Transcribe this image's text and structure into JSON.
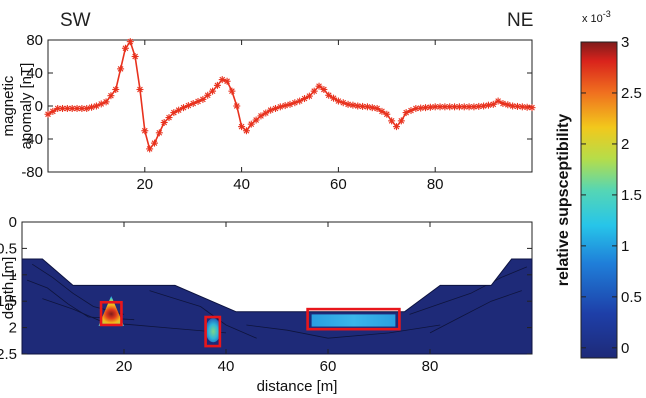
{
  "labels": {
    "left": "SW",
    "right": "NE"
  },
  "colors": {
    "anomaly_line": "#e8321e",
    "highlight_box": "#e8161b",
    "background_susceptibility": "#1e2a78"
  },
  "chart_data": [
    {
      "type": "line",
      "title": "",
      "xlabel": "",
      "ylabel_lines": [
        "magnetic",
        "anomaly [nT]"
      ],
      "xlim": [
        0,
        100
      ],
      "ylim": [
        -80,
        80
      ],
      "xticks": [
        20,
        40,
        60,
        80
      ],
      "yticks": [
        80,
        40,
        0,
        -40,
        -80
      ],
      "marker": "asterisk",
      "series": [
        {
          "x": [
            0,
            2,
            5,
            8,
            10,
            12,
            14,
            15,
            16,
            17,
            18,
            19,
            20,
            21,
            22,
            24,
            26,
            28,
            30,
            32,
            34,
            35,
            36,
            37,
            38,
            39,
            40,
            41,
            42,
            44,
            46,
            48,
            50,
            52,
            54,
            55,
            56,
            57,
            58,
            60,
            62,
            64,
            66,
            68,
            70,
            71,
            72,
            73,
            74,
            76,
            80,
            84,
            88,
            90,
            92,
            93,
            94,
            96,
            100
          ],
          "y": [
            -10,
            -3,
            -3,
            -3,
            0,
            5,
            20,
            45,
            70,
            78,
            60,
            20,
            -30,
            -52,
            -45,
            -20,
            -8,
            -2,
            3,
            8,
            18,
            25,
            32,
            30,
            18,
            0,
            -25,
            -30,
            -22,
            -12,
            -5,
            -1,
            2,
            6,
            12,
            18,
            24,
            20,
            13,
            6,
            2,
            0,
            -1,
            -3,
            -10,
            -18,
            -25,
            -18,
            -8,
            -3,
            -1,
            -1,
            -1,
            0,
            2,
            6,
            3,
            0,
            -2
          ]
        }
      ]
    },
    {
      "type": "heatmap",
      "title": "",
      "xlabel": "distance [m]",
      "ylabel": "depth [m]",
      "xlim": [
        0,
        100
      ],
      "ylim": [
        2.5,
        0
      ],
      "xticks": [
        20,
        40,
        60,
        80
      ],
      "yticks": [
        0,
        0.5,
        1,
        1.5,
        2,
        2.5
      ],
      "ytick_labels": [
        "0",
        "0.5",
        "1",
        "1.5",
        "2",
        "2.5"
      ],
      "model_outline": [
        [
          0,
          0.7
        ],
        [
          4,
          0.7
        ],
        [
          10,
          1.2
        ],
        [
          30,
          1.2
        ],
        [
          42,
          1.7
        ],
        [
          75,
          1.7
        ],
        [
          82,
          1.2
        ],
        [
          92,
          1.2
        ],
        [
          96,
          0.7
        ],
        [
          100,
          0.7
        ],
        [
          100,
          2.5
        ],
        [
          0,
          2.5
        ]
      ],
      "anomalies": [
        {
          "x": [
            15,
            20
          ],
          "depth": [
            1.4,
            2.5
          ],
          "peak": 2.5
        },
        {
          "x": [
            36,
            39
          ],
          "depth": [
            1.7,
            2.5
          ],
          "peak": 1.4
        },
        {
          "x": [
            56,
            74
          ],
          "depth": [
            1.7,
            2.5
          ],
          "peak": 1.1
        }
      ],
      "boxes": [
        {
          "x": [
            15.5,
            19.5
          ],
          "depth": [
            1.52,
            1.95
          ]
        },
        {
          "x": [
            36,
            38.8
          ],
          "depth": [
            1.8,
            2.35
          ]
        },
        {
          "x": [
            56,
            74
          ],
          "depth": [
            1.65,
            2.03
          ]
        }
      ]
    },
    {
      "type": "colorbar",
      "label": "relative supsceptibility",
      "multiplier": "x 10",
      "multiplier_exponent": "-3",
      "range": [
        -0.1,
        3
      ],
      "ticks": [
        "3",
        "2.5",
        "2",
        "1.5",
        "1",
        "0.5",
        "0"
      ]
    }
  ]
}
